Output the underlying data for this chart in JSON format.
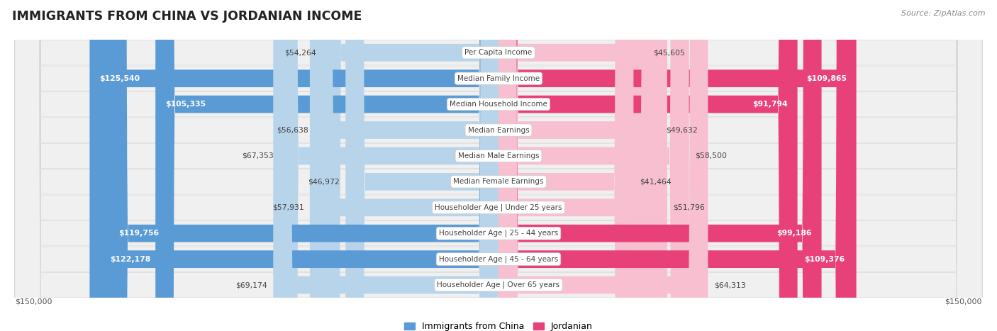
{
  "title": "IMMIGRANTS FROM CHINA VS JORDANIAN INCOME",
  "source": "Source: ZipAtlas.com",
  "categories": [
    "Per Capita Income",
    "Median Family Income",
    "Median Household Income",
    "Median Earnings",
    "Median Male Earnings",
    "Median Female Earnings",
    "Householder Age | Under 25 years",
    "Householder Age | 25 - 44 years",
    "Householder Age | 45 - 64 years",
    "Householder Age | Over 65 years"
  ],
  "china_values": [
    54264,
    125540,
    105335,
    56638,
    67353,
    46972,
    57931,
    119756,
    122178,
    69174
  ],
  "jordan_values": [
    45605,
    109865,
    91794,
    49632,
    58500,
    41464,
    51796,
    99186,
    109376,
    64313
  ],
  "china_color_light": "#b8d4ea",
  "china_color_dark": "#5b9bd5",
  "jordan_color_light": "#f7bfd0",
  "jordan_color_dark": "#e8417a",
  "row_bg": "#f0f0f0",
  "row_border": "#d8d8d8",
  "max_val": 150000,
  "large_threshold": 80000,
  "legend_china": "Immigrants from China",
  "legend_jordan": "Jordanian",
  "center_label_color": "#444444",
  "small_label_color": "#444444",
  "white_label_color": "#ffffff",
  "title_color": "#222222",
  "source_color": "#888888",
  "bottom_label_color": "#555555"
}
